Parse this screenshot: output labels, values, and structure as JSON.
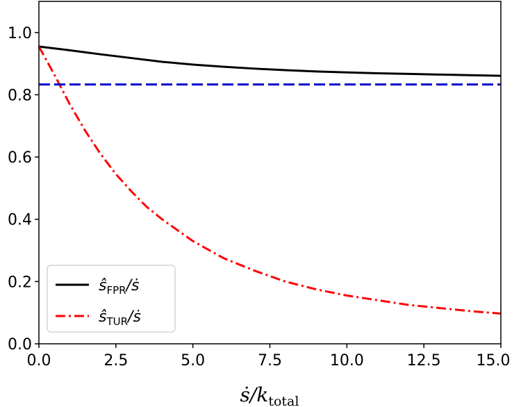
{
  "chart_data": {
    "type": "line",
    "xlabel": "ṡ/k_total",
    "ylabel": "",
    "xlim": [
      0,
      15
    ],
    "ylim": [
      0,
      1.1
    ],
    "grid": false,
    "legend_placement": "lower-left",
    "xticks": [
      "0.0",
      "2.5",
      "5.0",
      "7.5",
      "10.0",
      "12.5",
      "15.0"
    ],
    "yticks": [
      "0.0",
      "0.2",
      "0.4",
      "0.6",
      "0.8",
      "1.0"
    ],
    "series": [
      {
        "name": "ŝ_FPR/ṡ",
        "color": "#000000",
        "style": "solid",
        "x": [
          0,
          1,
          2,
          3,
          4,
          5,
          6,
          7,
          8,
          9,
          10,
          11,
          12,
          13,
          14,
          15
        ],
        "y": [
          0.955,
          0.943,
          0.93,
          0.918,
          0.906,
          0.897,
          0.89,
          0.884,
          0.879,
          0.875,
          0.872,
          0.869,
          0.867,
          0.865,
          0.863,
          0.861
        ]
      },
      {
        "name": "ŝ_TUR/ṡ",
        "color": "#ff0000",
        "style": "dashdot",
        "x": [
          0,
          0.5,
          1,
          1.5,
          2,
          2.5,
          3,
          3.5,
          4,
          5,
          6,
          7,
          8,
          9,
          10,
          11,
          12,
          13,
          14,
          15
        ],
        "y": [
          0.955,
          0.865,
          0.77,
          0.685,
          0.61,
          0.545,
          0.49,
          0.44,
          0.4,
          0.33,
          0.275,
          0.235,
          0.2,
          0.175,
          0.155,
          0.14,
          0.125,
          0.115,
          0.105,
          0.097
        ]
      },
      {
        "color": "#0000cc",
        "style": "dashed",
        "x": [
          0,
          15
        ],
        "y": [
          0.833,
          0.833
        ]
      }
    ],
    "legend": {
      "entries": [
        {
          "label_main": "ŝ",
          "label_sub": "FPR",
          "label_tail": "/ṡ"
        },
        {
          "label_main": "ŝ",
          "label_sub": "TUR",
          "label_tail": "/ṡ"
        }
      ]
    },
    "axis_label": {
      "main": "ṡ/k",
      "sub": "total"
    }
  }
}
